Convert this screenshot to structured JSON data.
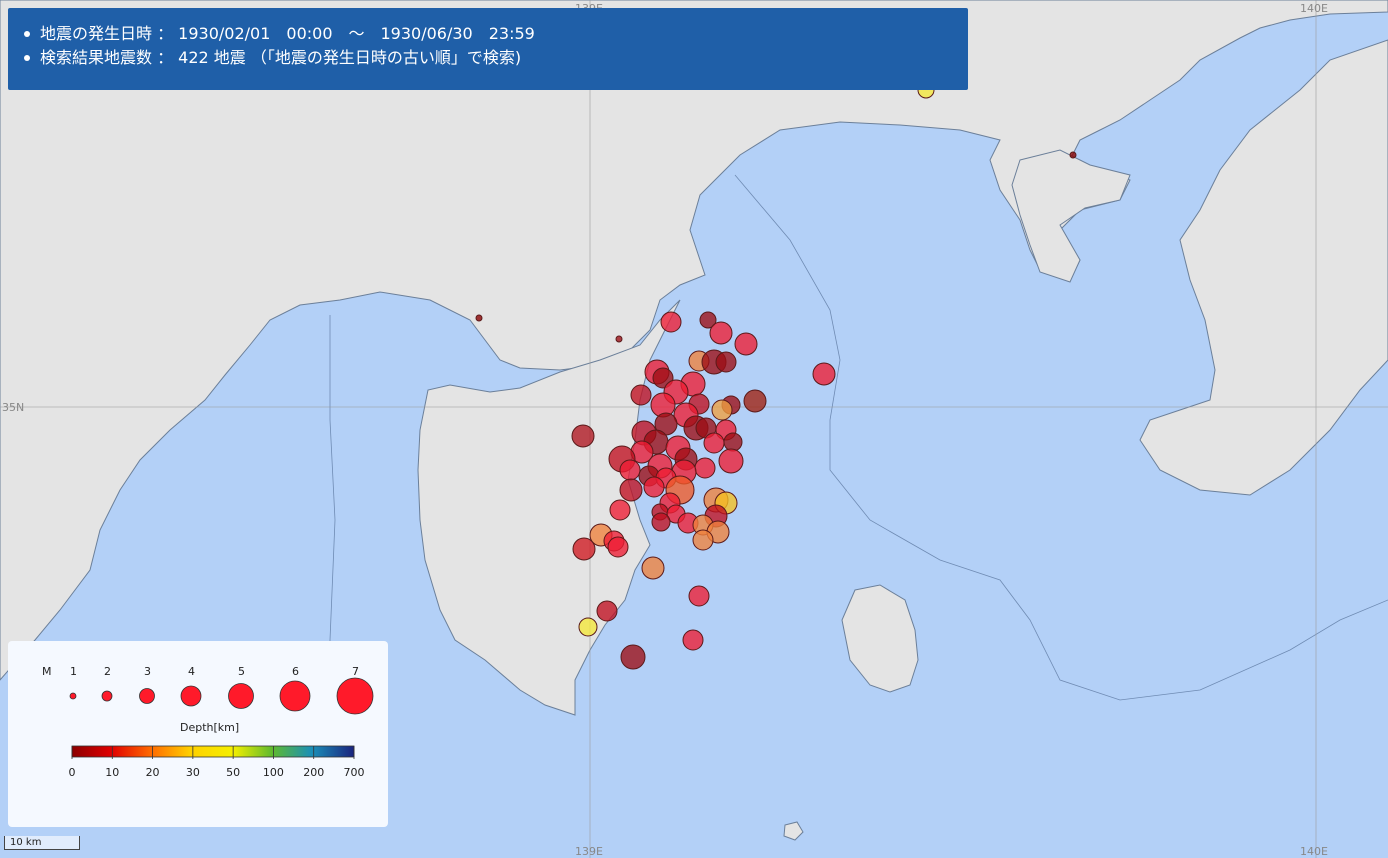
{
  "info": {
    "line1": "地震の発生日時 ： 1930/02/01　00:00　～　1930/06/30　23:59",
    "line2": "検索結果地震数 ： 422 地震 （「地震の発生日時の古い順」で検索)"
  },
  "grid_labels": {
    "lon_139": "139E",
    "lon_140": "140E",
    "lat_35": "35N"
  },
  "legend": {
    "magnitude_label": "M",
    "magnitudes": [
      "1",
      "2",
      "3",
      "4",
      "5",
      "6",
      "7"
    ],
    "depth_title": "Depth[km]",
    "depth_ticks": [
      "0",
      "10",
      "20",
      "30",
      "50",
      "100",
      "200",
      "700"
    ],
    "depth_colors": [
      "#8b0000",
      "#c50000",
      "#ff0000",
      "#ff7b00",
      "#ffbf00",
      "#ffff00",
      "#9acd32",
      "#00a050",
      "#1e88c0",
      "#1a237e"
    ]
  },
  "scale_bar": {
    "label": "10 km"
  },
  "colors": {
    "sea": "#b3d0f7",
    "land": "#e8e8e8",
    "header": "#1f5fa8",
    "quake_red": "#ee1c33",
    "quake_darkred": "#9c0d14",
    "quake_orange": "#f0823c",
    "quake_yellow": "#f5e83a"
  }
}
